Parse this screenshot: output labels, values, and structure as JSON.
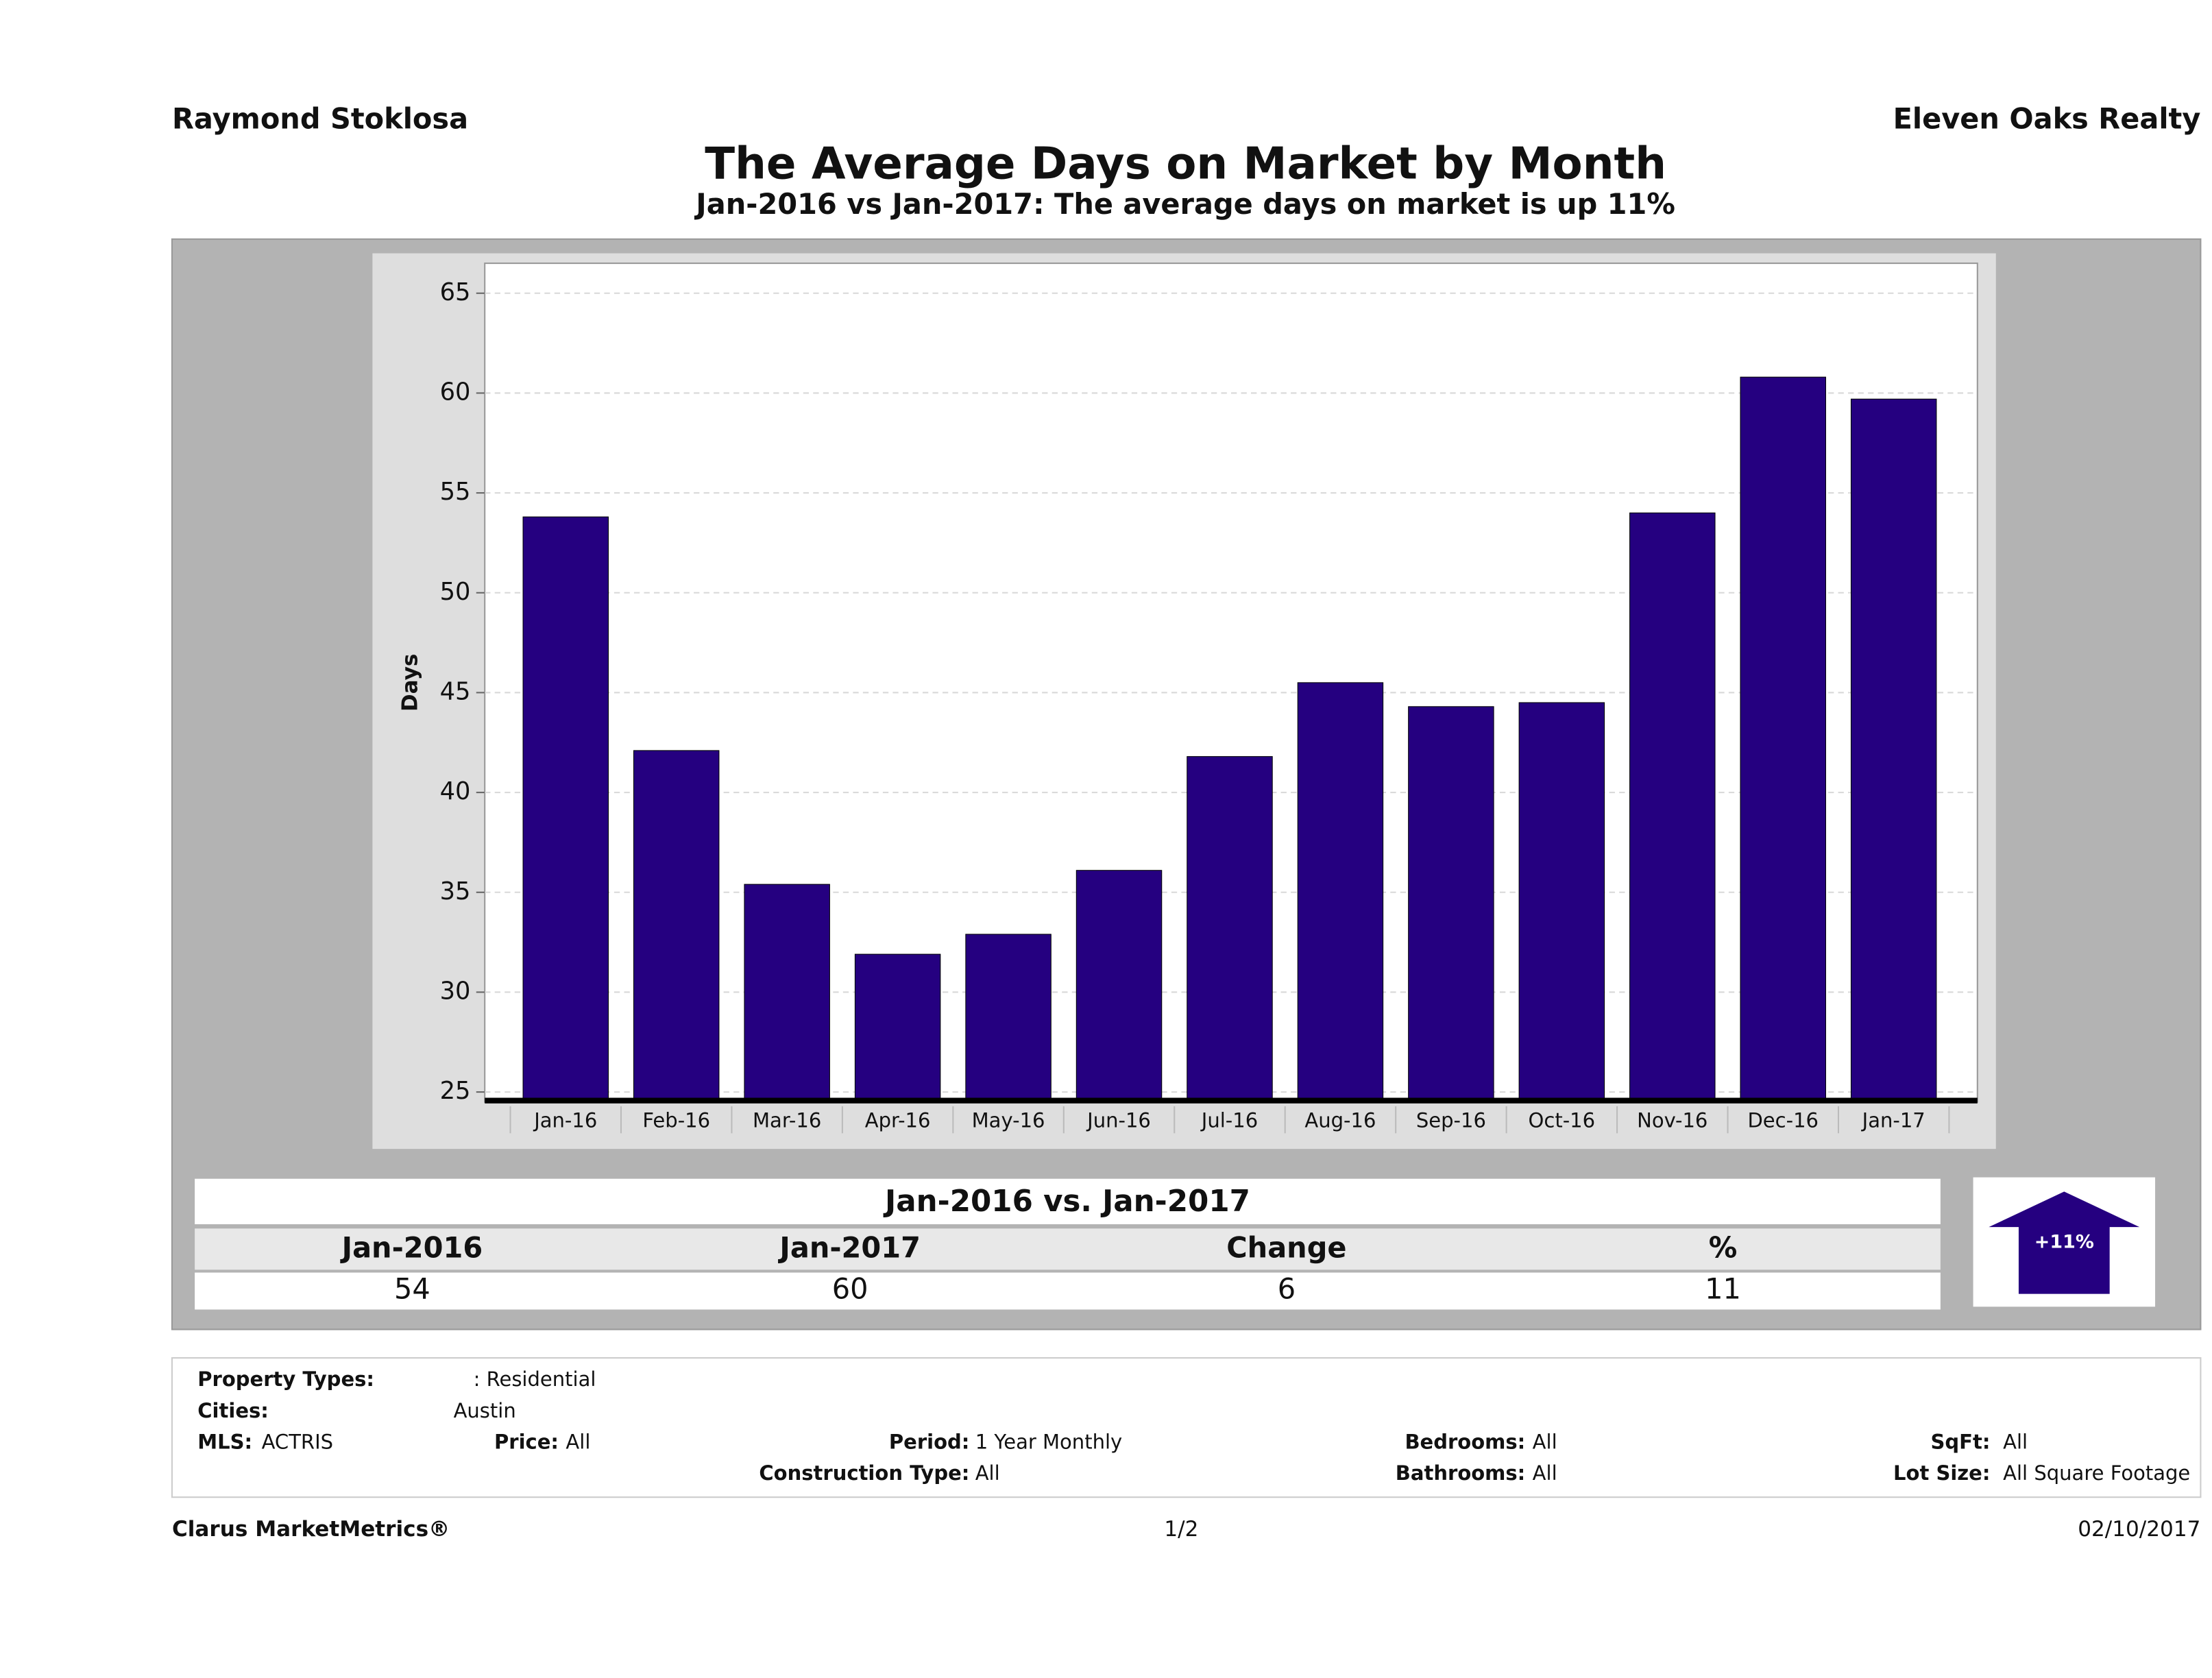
{
  "header": {
    "agent": "Raymond Stoklosa",
    "company": "Eleven Oaks Realty"
  },
  "chart_data": {
    "type": "bar",
    "title": "The Average Days on Market by Month",
    "subtitle": "Jan-2016 vs Jan-2017: The average days on market is up 11%",
    "y_label": "Days",
    "categories": [
      "Jan-16",
      "Feb-16",
      "Mar-16",
      "Apr-16",
      "May-16",
      "Jun-16",
      "Jul-16",
      "Aug-16",
      "Sep-16",
      "Oct-16",
      "Nov-16",
      "Dec-16",
      "Jan-17"
    ],
    "values": [
      53.8,
      42.1,
      35.4,
      31.9,
      32.9,
      36.1,
      41.8,
      45.5,
      44.3,
      44.5,
      54,
      60.8,
      59.7
    ],
    "color": "#250080",
    "ylim": [
      24.5,
      66.5
    ],
    "yticks": [
      25,
      30,
      35,
      40,
      45,
      50,
      55,
      60,
      65
    ],
    "grid": true
  },
  "summary": {
    "title": "Jan-2016 vs. Jan-2017",
    "headers": [
      "Jan-2016",
      "Jan-2017",
      "Change",
      "%"
    ],
    "values": [
      "54",
      "60",
      "6",
      "11"
    ],
    "badge": "+11%"
  },
  "filters": [
    {
      "label": "Property Types:",
      "value": ": Residential"
    },
    {
      "label": "Cities:",
      "value": "Austin"
    },
    {
      "label": "MLS:",
      "value": "ACTRIS"
    },
    {
      "label": "Price:",
      "value": "All"
    },
    {
      "label": "Period:",
      "value": "1 Year Monthly"
    },
    {
      "label": "Bedrooms:",
      "value": "All"
    },
    {
      "label": "SqFt:",
      "value": "All"
    },
    {
      "label": "Construction Type:",
      "value": "All"
    },
    {
      "label": "Bathrooms:",
      "value": "All"
    },
    {
      "label": "Lot Size:",
      "value": "All Square Footage"
    }
  ],
  "footer": {
    "brand": "Clarus MarketMetrics®",
    "page": "1/2",
    "date": "02/10/2017"
  }
}
